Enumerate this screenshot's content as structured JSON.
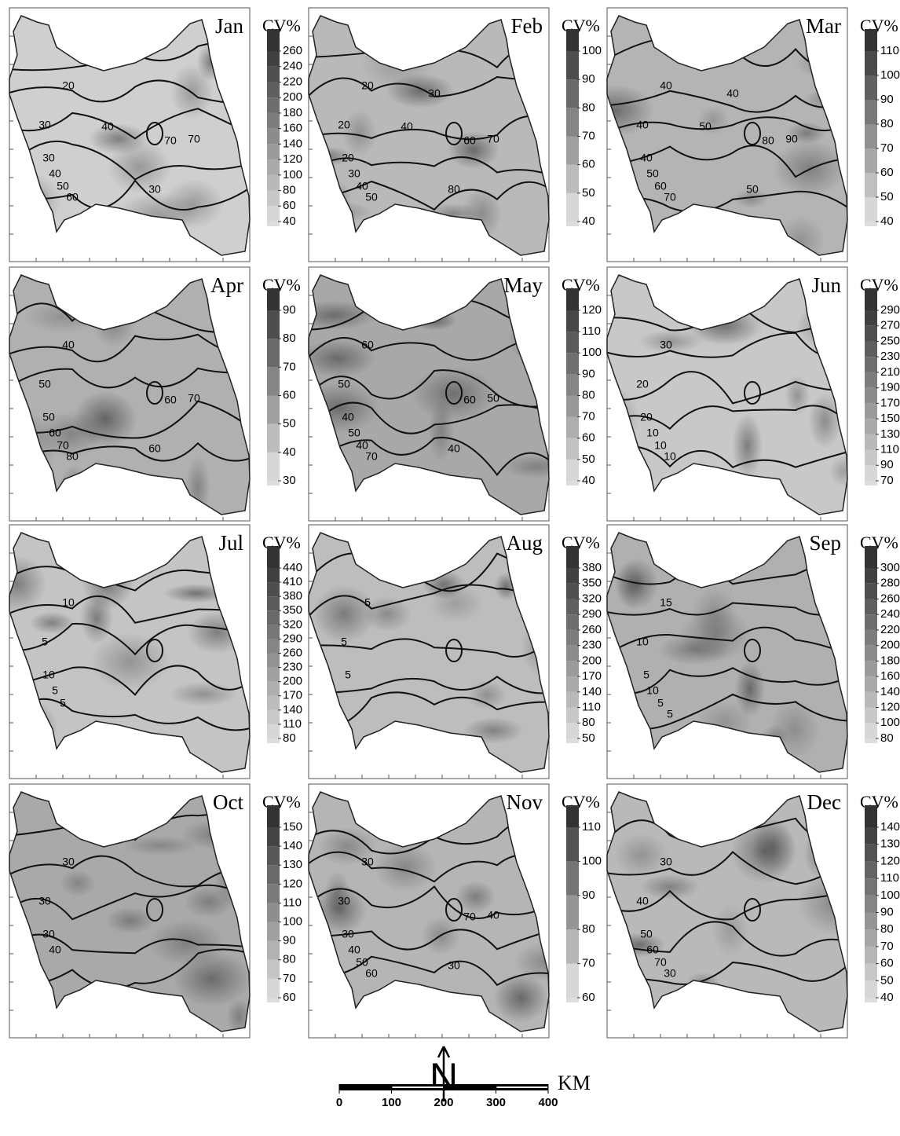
{
  "panels": [
    {
      "month": "Jan",
      "legend_title": "CV%",
      "legend_ticks": [
        40,
        60,
        80,
        100,
        120,
        140,
        160,
        180,
        200,
        220,
        240,
        260
      ],
      "contour_labels": [
        20,
        30,
        30,
        40,
        50,
        60,
        70,
        70,
        30,
        40
      ]
    },
    {
      "month": "Feb",
      "legend_title": "CV%",
      "legend_ticks": [
        40,
        50,
        60,
        70,
        80,
        90,
        100
      ],
      "contour_labels": [
        20,
        20,
        20,
        30,
        40,
        50,
        60,
        70,
        80,
        40,
        30
      ]
    },
    {
      "month": "Mar",
      "legend_title": "CV%",
      "legend_ticks": [
        40,
        50,
        60,
        70,
        80,
        90,
        100,
        110
      ],
      "contour_labels": [
        40,
        40,
        40,
        50,
        60,
        70,
        80,
        90,
        50,
        50,
        40
      ]
    },
    {
      "month": "Apr",
      "legend_title": "CV%",
      "legend_ticks": [
        30,
        40,
        50,
        60,
        70,
        80,
        90
      ],
      "contour_labels": [
        40,
        50,
        50,
        60,
        70,
        80,
        60,
        70,
        60
      ]
    },
    {
      "month": "May",
      "legend_title": "CV%",
      "legend_ticks": [
        40,
        50,
        60,
        70,
        80,
        90,
        100,
        110,
        120
      ],
      "contour_labels": [
        60,
        50,
        40,
        50,
        40,
        70,
        60,
        50,
        40
      ]
    },
    {
      "month": "Jun",
      "legend_title": "CV%",
      "legend_ticks": [
        70,
        90,
        110,
        130,
        150,
        170,
        190,
        210,
        230,
        250,
        270,
        290
      ],
      "contour_labels": [
        30,
        20,
        20,
        10,
        10,
        10
      ]
    },
    {
      "month": "Jul",
      "legend_title": "CV%",
      "legend_ticks": [
        80,
        110,
        140,
        170,
        200,
        230,
        260,
        290,
        320,
        350,
        380,
        410,
        440
      ],
      "contour_labels": [
        10,
        5,
        10,
        5,
        5
      ]
    },
    {
      "month": "Aug",
      "legend_title": "CV%",
      "legend_ticks": [
        50,
        80,
        110,
        140,
        170,
        200,
        230,
        260,
        290,
        320,
        350,
        380
      ],
      "contour_labels": [
        5,
        5,
        5
      ]
    },
    {
      "month": "Sep",
      "legend_title": "CV%",
      "legend_ticks": [
        80,
        100,
        120,
        140,
        160,
        180,
        200,
        220,
        240,
        260,
        280,
        300
      ],
      "contour_labels": [
        15,
        10,
        5,
        10,
        5,
        5
      ]
    },
    {
      "month": "Oct",
      "legend_title": "CV%",
      "legend_ticks": [
        60,
        70,
        80,
        90,
        100,
        110,
        120,
        130,
        140,
        150
      ],
      "contour_labels": [
        30,
        30,
        30,
        40
      ]
    },
    {
      "month": "Nov",
      "legend_title": "CV%",
      "legend_ticks": [
        60,
        70,
        80,
        90,
        100,
        110
      ],
      "contour_labels": [
        30,
        30,
        30,
        40,
        50,
        60,
        70,
        40,
        30
      ]
    },
    {
      "month": "Dec",
      "legend_title": "CV%",
      "legend_ticks": [
        40,
        50,
        60,
        70,
        80,
        90,
        100,
        110,
        120,
        130,
        140
      ],
      "contour_labels": [
        30,
        40,
        50,
        60,
        70,
        30
      ]
    }
  ],
  "north_label": "N",
  "scale": {
    "unit": "KM",
    "ticks": [
      0,
      100,
      200,
      300,
      400
    ]
  }
}
